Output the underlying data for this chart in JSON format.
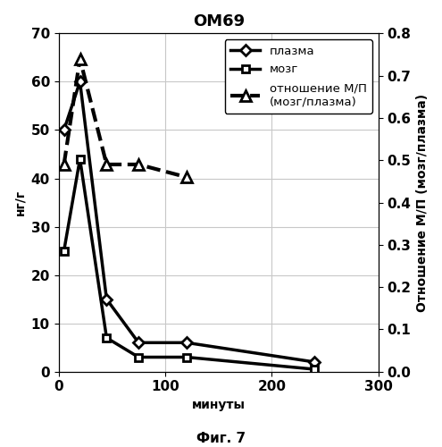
{
  "title": "OM69",
  "xlabel": "минуты",
  "ylabel_left": "нг/г",
  "ylabel_right": "Отношение М/П (мозг/плазма)",
  "ylim_left": [
    0,
    70
  ],
  "ylim_right": [
    0,
    0.8
  ],
  "xlim": [
    0,
    300
  ],
  "yticks_left": [
    0,
    10,
    20,
    30,
    40,
    50,
    60,
    70
  ],
  "yticks_right": [
    0,
    0.1,
    0.2,
    0.3,
    0.4,
    0.5,
    0.6,
    0.7,
    0.8
  ],
  "xticks": [
    0,
    100,
    200,
    300
  ],
  "plasma": {
    "x": [
      5,
      20,
      45,
      75,
      120,
      240
    ],
    "y": [
      50,
      60,
      15,
      6,
      6,
      2
    ],
    "label": "плазма",
    "color": "black",
    "linestyle": "-",
    "linewidth": 2.5,
    "marker": "D",
    "markersize": 6,
    "markerfacecolor": "white",
    "markeredgecolor": "black",
    "markeredgewidth": 2
  },
  "brain": {
    "x": [
      5,
      20,
      45,
      75,
      120,
      240
    ],
    "y": [
      25,
      44,
      7,
      3,
      3,
      0.5
    ],
    "label": "мозг",
    "color": "black",
    "linestyle": "-",
    "linewidth": 2.5,
    "marker": "s",
    "markersize": 6,
    "markerfacecolor": "white",
    "markeredgecolor": "black",
    "markeredgewidth": 2
  },
  "ratio": {
    "x": [
      5,
      20,
      45,
      75,
      120
    ],
    "y": [
      0.49,
      0.74,
      0.49,
      0.49,
      0.46
    ],
    "label": "отношение М/П\n(мозг/плазма)",
    "color": "black",
    "linestyle": "--",
    "linewidth": 3.0,
    "marker": "^",
    "markersize": 8,
    "markerfacecolor": "white",
    "markeredgecolor": "black",
    "markeredgewidth": 2
  },
  "legend_loc": "upper right",
  "caption": "Фиг. 7",
  "background_color": "#ffffff",
  "grid": true,
  "grid_color": "#c8c8c8",
  "title_fontsize": 13,
  "label_fontsize": 10,
  "tick_fontsize": 11,
  "legend_fontsize": 9.5
}
